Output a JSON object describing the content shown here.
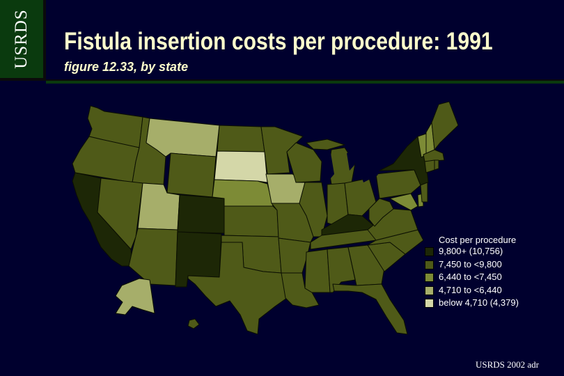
{
  "header": {
    "badge": "USRDS",
    "title": "Fistula insertion costs per procedure: 1991",
    "subtitle": "figure 12.33, by state"
  },
  "colors": {
    "background": "#00002e",
    "header_green": "#0a3a0e",
    "tier1": "#1d2706",
    "tier2": "#4f5a18",
    "tier3": "#7d8b36",
    "tier4": "#a6ae6a",
    "tier5": "#d4d7a8"
  },
  "legend": {
    "title": "Cost per procedure",
    "items": [
      {
        "label": "9,800+ (10,756)",
        "color": "#1d2706"
      },
      {
        "label": "7,450 to <9,800",
        "color": "#4f5a18"
      },
      {
        "label": "6,440 to <7,450",
        "color": "#7d8b36"
      },
      {
        "label": "4,710 to <6,440",
        "color": "#a6ae6a"
      },
      {
        "label": "below 4,710 (4,379)",
        "color": "#d4d7a8"
      }
    ]
  },
  "states": {
    "CA": 1,
    "CO": 1,
    "NM": 1,
    "KY": 1,
    "NY": 1,
    "WA": 2,
    "OR": 2,
    "ID": 2,
    "NV": 2,
    "AZ": 2,
    "WY": 2,
    "ND": 2,
    "MN": 2,
    "SD_x": 0,
    "KS": 2,
    "OK": 2,
    "TX": 2,
    "MO": 2,
    "AR": 2,
    "LA": 2,
    "WI": 2,
    "IL": 2,
    "MI": 2,
    "IN": 2,
    "OH": 2,
    "TN": 2,
    "MS": 2,
    "AL": 2,
    "GA": 2,
    "FL": 2,
    "SC": 2,
    "NC": 2,
    "VA": 2,
    "WV": 2,
    "PA": 2,
    "NJ": 2,
    "ME": 2,
    "MA": 2,
    "CT": 2,
    "RI": 2,
    "HI": 2,
    "NE": 3,
    "MD": 3,
    "DE": 3,
    "NH": 3,
    "VT": 3,
    "MT": 4,
    "UT": 4,
    "IA": 4,
    "AK": 4,
    "SD": 5
  },
  "footer": "USRDS 2002 adr"
}
